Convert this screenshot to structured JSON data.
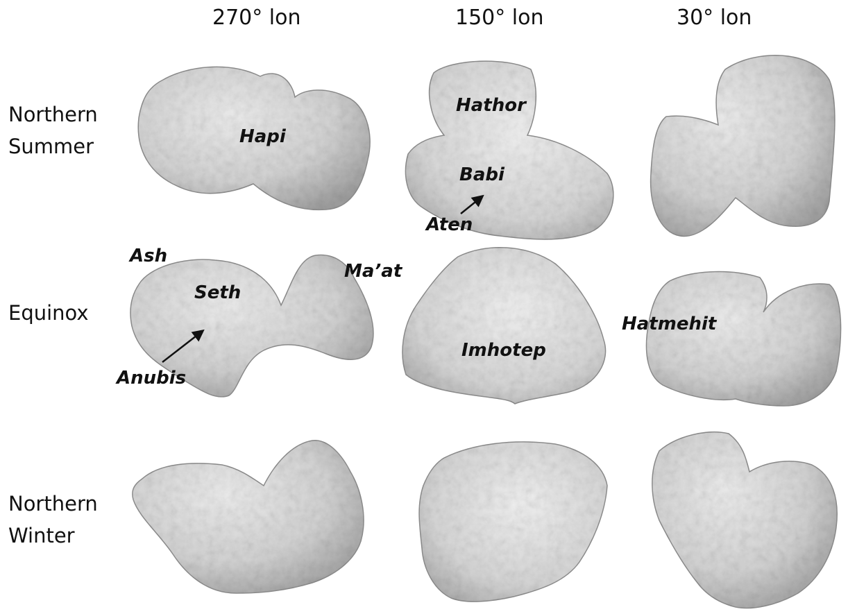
{
  "columns": [
    "270° lon",
    "150° lon",
    "30° lon"
  ],
  "rows": [
    {
      "line1": "Northern",
      "line2": "Summer"
    },
    {
      "line1": "Equinox",
      "line2": ""
    },
    {
      "line1": "Northern",
      "line2": "Winter"
    }
  ],
  "regions": {
    "hapi": "Hapi",
    "hathor": "Hathor",
    "babi": "Babi",
    "aten": "Aten",
    "ash": "Ash",
    "maat": "Ma’at",
    "seth": "Seth",
    "anubis": "Anubis",
    "imhotep": "Imhotep",
    "hatmehit": "Hatmehit"
  },
  "colors": {
    "shape_fill": "#d3d3d3",
    "shape_shadow": "#9a9a9a",
    "text": "#111111"
  }
}
